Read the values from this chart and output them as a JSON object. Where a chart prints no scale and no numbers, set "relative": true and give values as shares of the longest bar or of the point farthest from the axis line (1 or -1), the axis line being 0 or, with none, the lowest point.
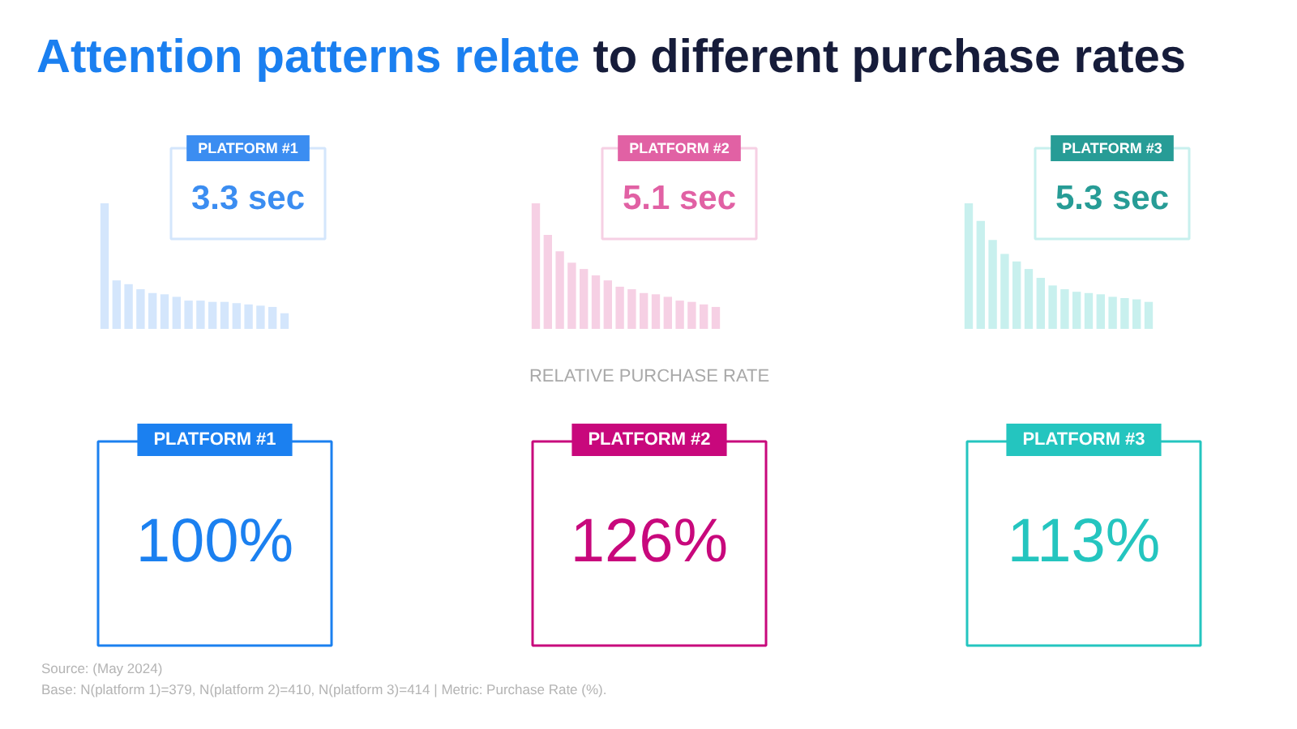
{
  "chart_data": [
    {
      "type": "other",
      "title": "Attention patterns relate",
      "subtitle": "to different purchase rates"
    },
    {
      "type": "bar",
      "title": "PLATFORM #1",
      "annotations": [
        "3.3 sec"
      ],
      "relative": true,
      "categories": [
        null,
        null,
        null,
        null,
        null,
        null,
        null,
        null,
        null,
        null,
        null,
        null,
        null,
        null,
        null,
        null
      ],
      "values": [
        1,
        0.39,
        0.36,
        0.32,
        0.29,
        0.28,
        0.26,
        0.23,
        0.23,
        0.22,
        0.22,
        0.21,
        0.2,
        0.19,
        0.18,
        0.13
      ],
      "color": "#d4e6fc"
    },
    {
      "type": "bar",
      "title": "PLATFORM #2",
      "annotations": [
        "5.1 sec"
      ],
      "relative": true,
      "categories": [
        null,
        null,
        null,
        null,
        null,
        null,
        null,
        null,
        null,
        null,
        null,
        null,
        null,
        null,
        null,
        null
      ],
      "values": [
        1,
        0.75,
        0.62,
        0.53,
        0.48,
        0.43,
        0.39,
        0.34,
        0.32,
        0.29,
        0.28,
        0.26,
        0.23,
        0.22,
        0.2,
        0.18
      ],
      "color": "#f6d0e4"
    },
    {
      "type": "bar",
      "title": "PLATFORM #3",
      "annotations": [
        "5.3 sec"
      ],
      "relative": true,
      "categories": [
        null,
        null,
        null,
        null,
        null,
        null,
        null,
        null,
        null,
        null,
        null,
        null,
        null,
        null,
        null,
        null
      ],
      "values": [
        1,
        0.86,
        0.71,
        0.6,
        0.54,
        0.48,
        0.41,
        0.35,
        0.32,
        0.3,
        0.29,
        0.28,
        0.26,
        0.25,
        0.24,
        0.22
      ],
      "color": "#c8f0ee"
    },
    {
      "type": "other",
      "title": "RELATIVE PURCHASE RATE",
      "categories": [
        "PLATFORM #1",
        "PLATFORM #2",
        "PLATFORM #3"
      ],
      "values": [
        100,
        126,
        113
      ],
      "value_labels": [
        "100%",
        "126%",
        "113%"
      ],
      "colors": [
        "#1b80f0",
        "#c8087c",
        "#24c5bf"
      ],
      "annotations": [
        "Source: (May 2024)",
        "Base: N(platform 1)=379, N(platform 2)=410, N(platform 3)=414 | Metric: Purchase Rate (%)."
      ]
    }
  ]
}
